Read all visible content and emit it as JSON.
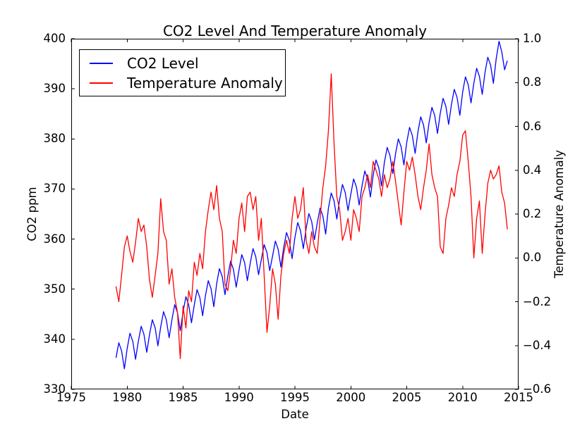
{
  "figure": {
    "title": "CO2 Level And Temperature Anomaly",
    "background_color": "#ffffff",
    "axes_color": "#000000"
  },
  "legend": {
    "position": "upper left",
    "entries": [
      {
        "label": "CO2 Level",
        "color": "#0000ff"
      },
      {
        "label": "Temperature Anomaly",
        "color": "#ff0000"
      }
    ]
  },
  "chart_data": {
    "type": "line",
    "title": "CO2 Level And Temperature Anomaly",
    "xlabel": "Date",
    "grid": false,
    "legend_position": "upper left",
    "xlim": [
      1975,
      2015
    ],
    "x_ticks": [
      1975,
      1980,
      1985,
      1990,
      1995,
      2000,
      2005,
      2010,
      2015
    ],
    "x_tick_labels": [
      "1975",
      "1980",
      "1985",
      "1990",
      "1995",
      "2000",
      "2005",
      "2010",
      "2015"
    ],
    "left_axis": {
      "label": "CO2 ppm",
      "lim": [
        330,
        400
      ],
      "ticks": [
        330,
        340,
        350,
        360,
        370,
        380,
        390,
        400
      ],
      "tick_labels": [
        "330",
        "340",
        "350",
        "360",
        "370",
        "380",
        "390",
        "400"
      ]
    },
    "right_axis": {
      "label": "Temperature Anomaly",
      "lim": [
        -0.6,
        1.0
      ],
      "ticks": [
        -0.6,
        -0.4,
        -0.2,
        0.0,
        0.2,
        0.4,
        0.6,
        0.8,
        1.0
      ],
      "tick_labels": [
        "−0.6",
        "−0.4",
        "−0.2",
        "0.0",
        "0.2",
        "0.4",
        "0.6",
        "0.8",
        "1.0"
      ]
    },
    "series": [
      {
        "name": "CO2 Level",
        "color": "#0000ff",
        "axis": "left",
        "x_start": 1979.0,
        "x_step": 0.25,
        "values": [
          336.3,
          339.3,
          337.7,
          334.1,
          338.2,
          341.2,
          339.6,
          336.0,
          339.6,
          342.6,
          341.0,
          337.4,
          340.9,
          343.9,
          342.3,
          338.7,
          342.5,
          345.5,
          343.9,
          340.3,
          343.9,
          346.9,
          345.3,
          341.7,
          345.5,
          348.5,
          346.9,
          343.3,
          346.9,
          349.9,
          348.3,
          344.7,
          348.7,
          351.7,
          350.1,
          346.5,
          351.1,
          354.1,
          352.5,
          348.9,
          352.6,
          355.6,
          354.0,
          350.4,
          353.9,
          356.9,
          355.3,
          351.7,
          355.1,
          358.1,
          356.5,
          352.9,
          355.9,
          358.9,
          357.3,
          353.7,
          356.6,
          359.6,
          358.0,
          354.4,
          358.3,
          361.3,
          359.7,
          356.1,
          360.3,
          363.3,
          361.7,
          358.1,
          362.1,
          365.1,
          363.5,
          359.9,
          363.2,
          366.2,
          364.6,
          361.0,
          366.2,
          369.2,
          367.6,
          364.0,
          367.9,
          370.9,
          369.3,
          365.7,
          369.0,
          372.0,
          370.4,
          366.8,
          370.6,
          373.6,
          372.0,
          368.4,
          372.8,
          375.8,
          374.2,
          370.6,
          375.3,
          378.3,
          376.7,
          373.1,
          377.0,
          380.0,
          378.4,
          374.8,
          379.3,
          382.3,
          380.7,
          377.1,
          381.4,
          384.4,
          382.8,
          379.2,
          383.3,
          386.3,
          384.7,
          381.1,
          385.1,
          388.1,
          386.5,
          382.9,
          386.9,
          389.9,
          388.3,
          384.7,
          389.4,
          392.4,
          390.8,
          387.2,
          391.1,
          394.1,
          392.5,
          388.9,
          393.3,
          396.3,
          394.7,
          391.1,
          396.0,
          399.5,
          397.4,
          393.8,
          395.6
        ]
      },
      {
        "name": "Temperature Anomaly",
        "color": "#ff0000",
        "axis": "right",
        "x_start": 1979.0,
        "x_step": 0.25,
        "values": [
          -0.13,
          -0.2,
          -0.08,
          0.05,
          0.1,
          0.03,
          -0.02,
          0.07,
          0.18,
          0.12,
          0.15,
          0.05,
          -0.1,
          -0.18,
          -0.08,
          0.02,
          0.27,
          0.12,
          0.08,
          -0.12,
          -0.05,
          -0.18,
          -0.25,
          -0.46,
          -0.22,
          -0.32,
          -0.15,
          -0.2,
          -0.02,
          -0.08,
          0.02,
          -0.05,
          0.12,
          0.22,
          0.3,
          0.22,
          0.33,
          0.18,
          0.12,
          -0.12,
          -0.15,
          -0.05,
          0.08,
          0.02,
          0.18,
          0.25,
          0.12,
          0.28,
          0.3,
          0.22,
          0.28,
          0.08,
          0.18,
          -0.08,
          -0.34,
          -0.22,
          -0.05,
          -0.12,
          -0.28,
          -0.08,
          0.02,
          0.08,
          0.02,
          0.18,
          0.28,
          0.18,
          0.22,
          0.32,
          0.08,
          0.02,
          0.12,
          0.05,
          0.02,
          0.18,
          0.32,
          0.42,
          0.58,
          0.84,
          0.52,
          0.28,
          0.22,
          0.08,
          0.12,
          0.18,
          0.08,
          0.22,
          0.18,
          0.12,
          0.28,
          0.32,
          0.38,
          0.32,
          0.44,
          0.4,
          0.36,
          0.28,
          0.38,
          0.32,
          0.36,
          0.44,
          0.35,
          0.25,
          0.15,
          0.3,
          0.44,
          0.4,
          0.46,
          0.38,
          0.28,
          0.22,
          0.32,
          0.4,
          0.52,
          0.38,
          0.32,
          0.28,
          0.05,
          0.02,
          0.18,
          0.24,
          0.32,
          0.28,
          0.38,
          0.44,
          0.56,
          0.58,
          0.44,
          0.28,
          0.0,
          0.18,
          0.26,
          0.02,
          0.2,
          0.34,
          0.4,
          0.36,
          0.38,
          0.42,
          0.3,
          0.25,
          0.13
        ]
      }
    ]
  }
}
